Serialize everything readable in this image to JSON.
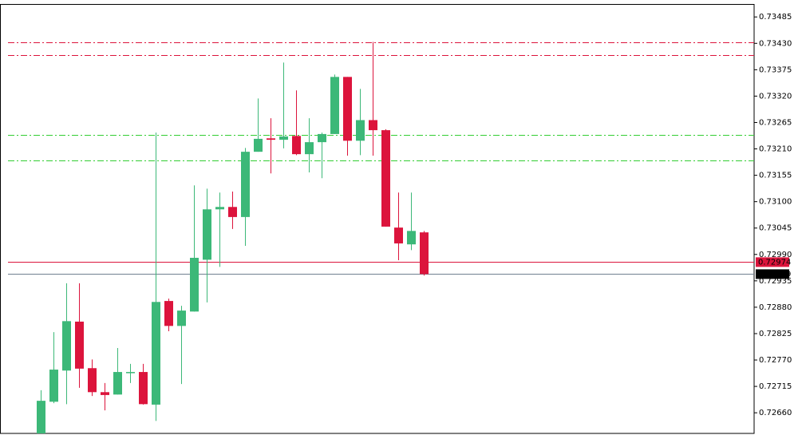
{
  "chart_data": {
    "type": "candlestick",
    "up_color": "#3cb878",
    "down_color": "#dc143c",
    "ylim": [
      0.72617,
      0.73512
    ],
    "yticks": [
      0.73485,
      {
        "value": 0.7343,
        "label": "0.73430"
      },
      0.73375,
      {
        "value": 0.7332,
        "label": "0.73320"
      },
      0.73265,
      {
        "value": 0.7321,
        "label": "0.73210"
      },
      0.73155,
      {
        "value": 0.731,
        "label": "0.73100"
      },
      0.73045,
      {
        "value": 0.7299,
        "label": "0.72990"
      },
      0.72935,
      {
        "value": 0.7288,
        "label": "0.72880"
      },
      0.72825,
      {
        "value": 0.7277,
        "label": "0.72770"
      },
      0.72715,
      {
        "value": 0.7266,
        "label": "0.72660"
      }
    ],
    "open": [
      0.72617,
      0.72683,
      0.72748,
      0.7285,
      0.72753,
      0.72703,
      0.72698,
      0.72743,
      0.72745,
      0.72677,
      0.72893,
      0.72841,
      0.72871,
      0.72979,
      0.73084,
      0.73089,
      0.73068,
      0.73204,
      0.73232,
      0.73229,
      0.73237,
      0.73199,
      0.73224,
      0.73241,
      0.7336,
      0.73227,
      0.7327,
      0.73249,
      0.73046,
      0.73011,
      0.73036
    ],
    "high": [
      0.72707,
      0.72828,
      0.7293,
      0.7293,
      0.72771,
      0.72722,
      0.72795,
      0.72762,
      0.72762,
      0.73244,
      0.72898,
      0.72883,
      0.73134,
      0.73127,
      0.73119,
      0.73121,
      0.73212,
      0.73315,
      0.73274,
      0.7339,
      0.73332,
      0.73274,
      0.73244,
      0.73365,
      0.7336,
      0.73335,
      0.73433,
      0.73251,
      0.73119,
      0.73119,
      0.73039
    ],
    "low": [
      0.72617,
      0.7268,
      0.72678,
      0.72712,
      0.72695,
      0.72665,
      0.72698,
      0.72722,
      0.72677,
      0.72643,
      0.7283,
      0.7272,
      0.72871,
      0.7289,
      0.72964,
      0.73043,
      0.73008,
      0.73204,
      0.73159,
      0.73211,
      0.73197,
      0.73161,
      0.73149,
      0.73241,
      0.73196,
      0.73197,
      0.73196,
      0.73048,
      0.72978,
      0.72999,
      0.72946
    ],
    "close": [
      0.72685,
      0.7275,
      0.72851,
      0.72752,
      0.72703,
      0.72697,
      0.72745,
      0.72745,
      0.72678,
      0.72891,
      0.72841,
      0.72873,
      0.72983,
      0.73084,
      0.73089,
      0.73068,
      0.73204,
      0.73231,
      0.73229,
      0.73236,
      0.73199,
      0.73224,
      0.73241,
      0.7336,
      0.73227,
      0.7327,
      0.73249,
      0.73048,
      0.73013,
      0.73039,
      0.72949
    ],
    "levels": [
      {
        "value": 0.73432,
        "color": "#dc143c",
        "style": "dashdot"
      },
      {
        "value": 0.73405,
        "color": "#dc143c",
        "style": "dashdot"
      },
      {
        "value": 0.73239,
        "color": "#32cd32",
        "style": "dashdot"
      },
      {
        "value": 0.73186,
        "color": "#32cd32",
        "style": "dashdot"
      },
      {
        "value": 0.72974,
        "color": "#dc143c",
        "style": "solid"
      },
      {
        "value": 0.72949,
        "color": "#708090",
        "style": "solid"
      }
    ],
    "price_labels": [
      {
        "value": 0.72974,
        "color": "#dc143c"
      },
      {
        "value": 0.72949,
        "color": "#000000"
      }
    ]
  }
}
